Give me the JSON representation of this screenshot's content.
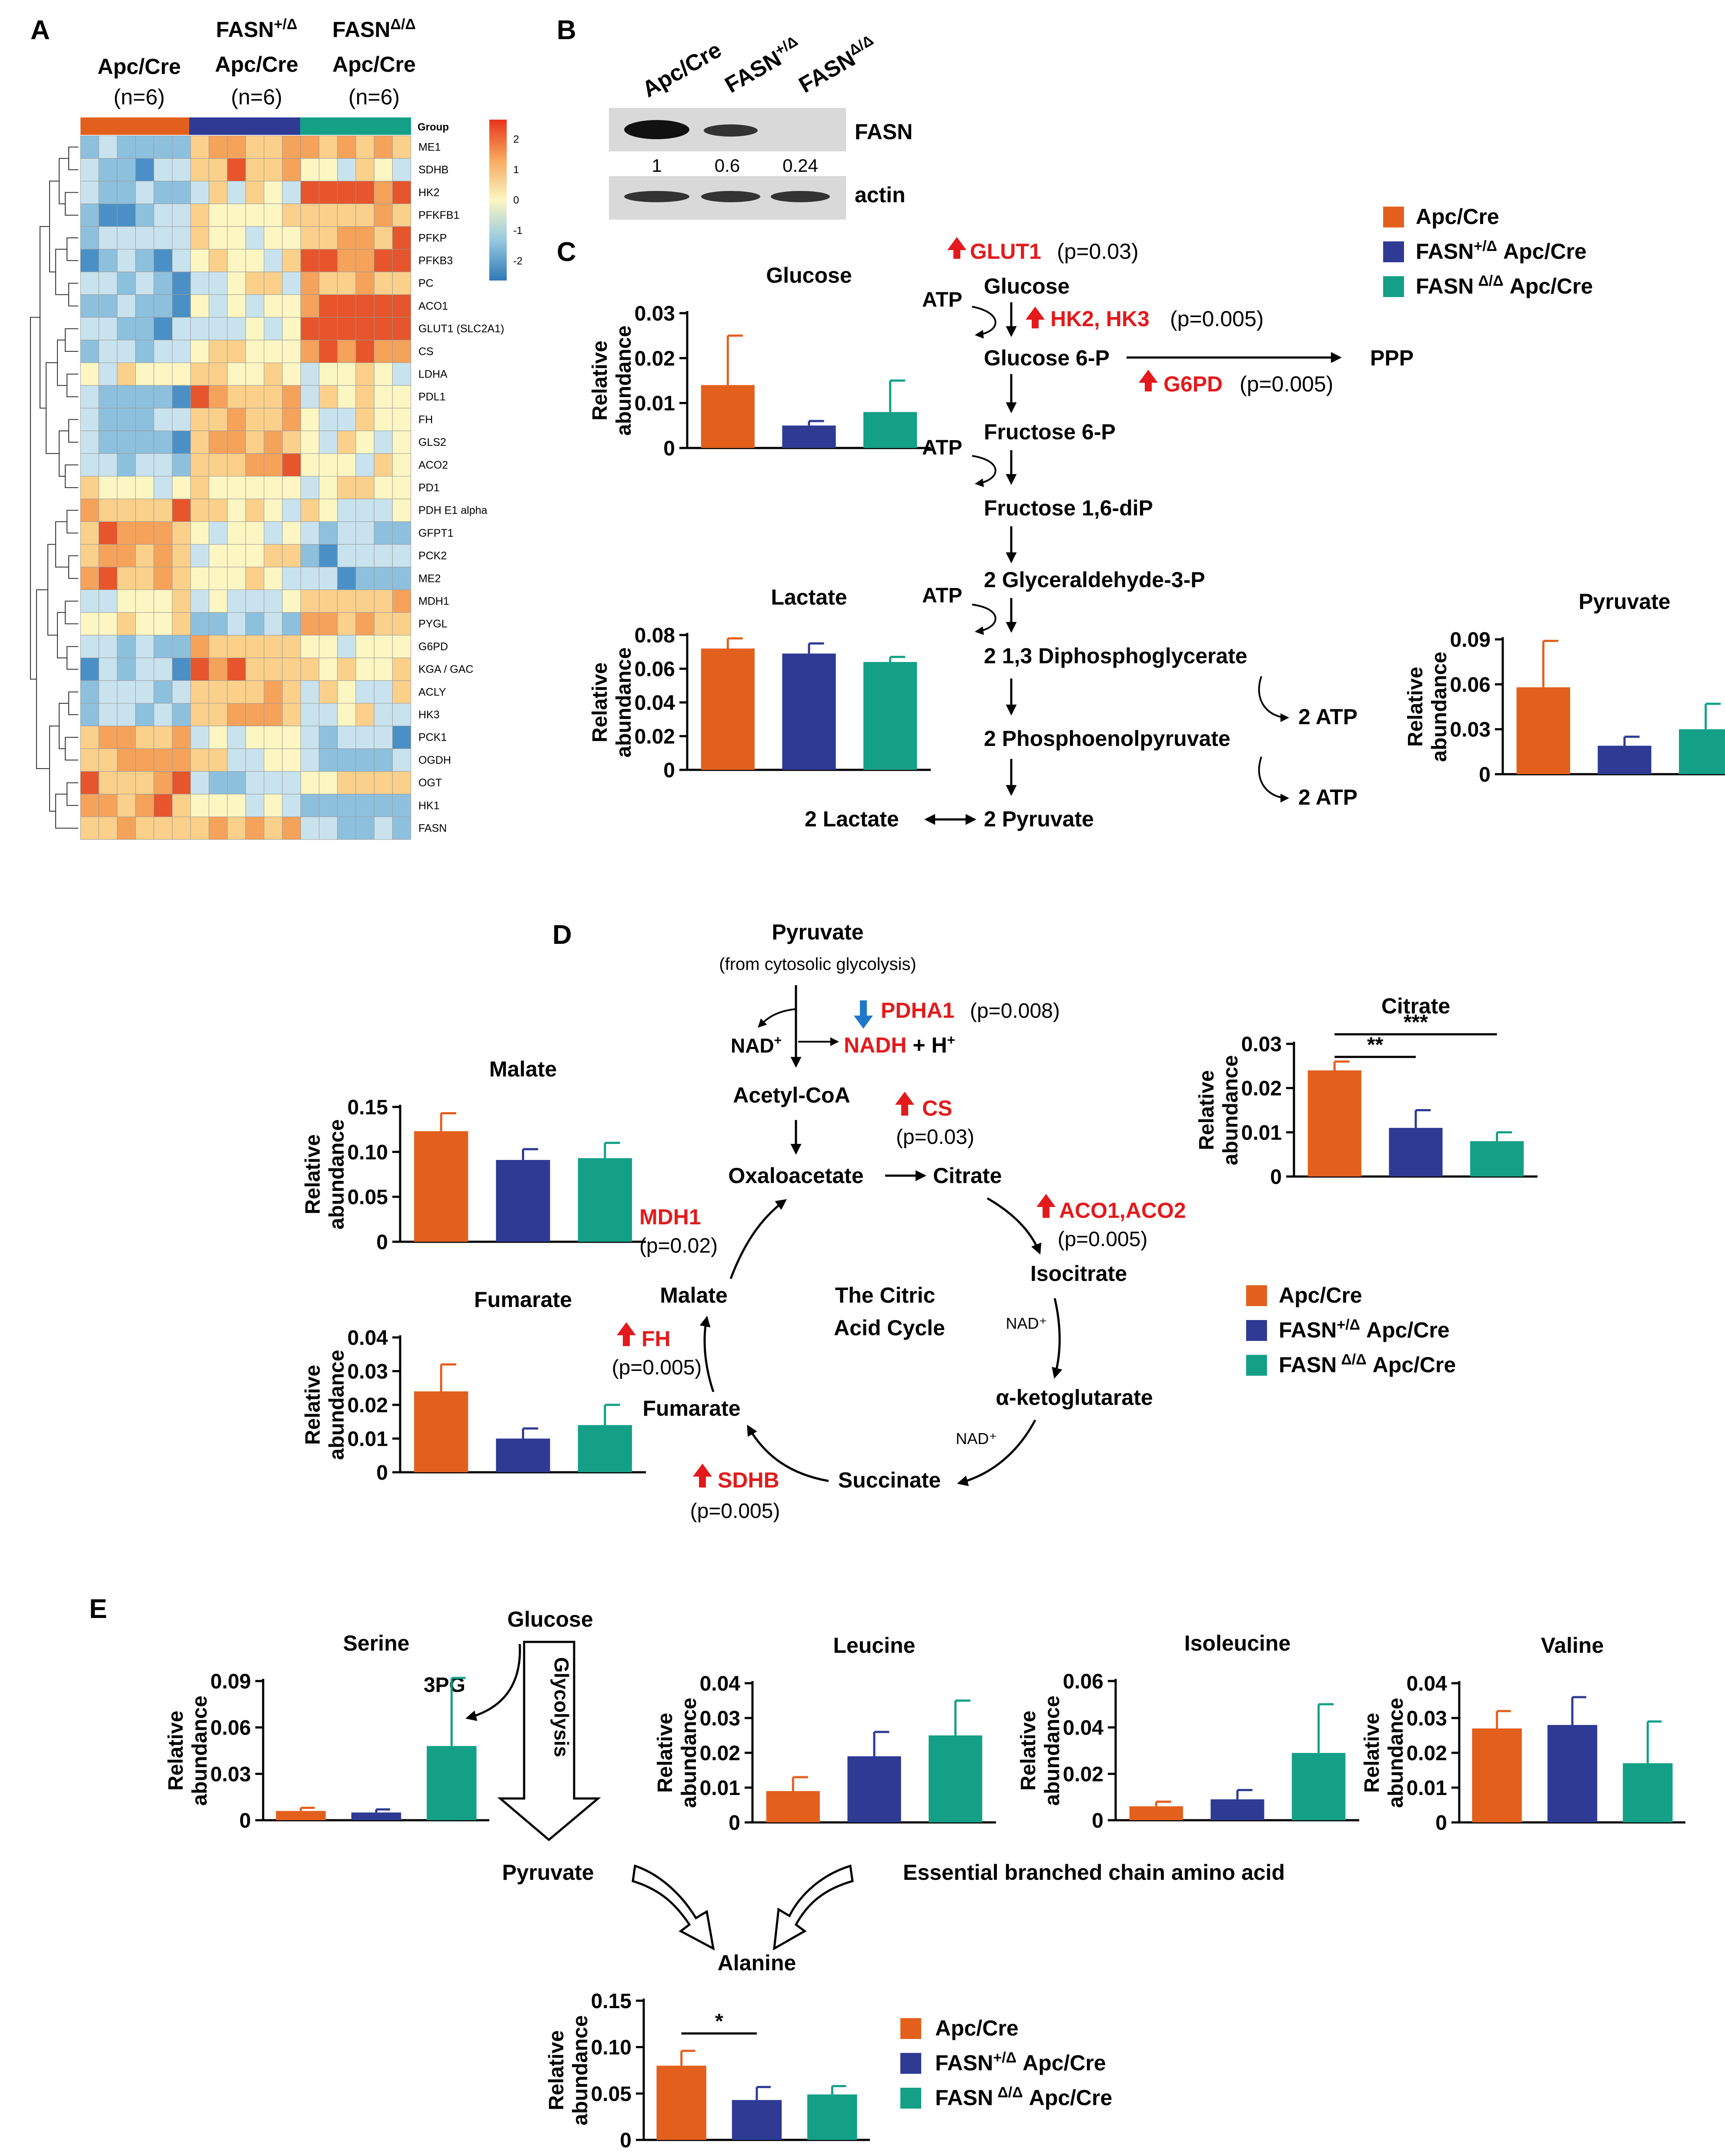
{
  "colors": {
    "apc": "#E3601C",
    "het": "#2E3A94",
    "hom": "#13A087",
    "red": "#E31A1C",
    "blue": "#1F78C8",
    "black": "#000000"
  },
  "panel_labels": [
    "A",
    "B",
    "C",
    "D",
    "E"
  ],
  "legend": {
    "apc": "Apc/Cre",
    "het": "FASN",
    "het_sup": "+/Δ",
    "hom": "FASN",
    "hom_sup": "Δ/Δ",
    "cre_suffix": " Apc/Cre"
  },
  "heatmap": {
    "col_headers": [
      {
        "top": "",
        "mid": "Apc/Cre",
        "n": "(n=6)"
      },
      {
        "top": "FASN",
        "sup": "+/Δ",
        "mid": "Apc/Cre",
        "n": "(n=6)"
      },
      {
        "top": "FASN",
        "sup": "Δ/Δ",
        "mid": "Apc/Cre",
        "n": "(n=6)"
      }
    ],
    "group_label": "Group",
    "scale_ticks": [
      "2",
      "1",
      "0",
      "-1",
      "-2"
    ],
    "genes": [
      "ME1",
      "SDHB",
      "HK2",
      "PFKFB1",
      "PFKP",
      "PFKB3",
      "PC",
      "ACO1",
      "GLUT1 (SLC2A1)",
      "CS",
      "LDHA",
      "PDL1",
      "FH",
      "GLS2",
      "ACO2",
      "PD1",
      "PDH E1 alpha",
      "GFPT1",
      "PCK2",
      "ME2",
      "MDH1",
      "PYGL",
      "G6PD",
      "KGA / GAC",
      "ACLY",
      "HK3",
      "PCK1",
      "OGDH",
      "OGT",
      "HK1",
      "FASN"
    ]
  },
  "western": {
    "lanes": [
      "Apc/Cre",
      "FASN",
      "FASN"
    ],
    "lane_sups": [
      "",
      "+/Δ",
      "Δ/Δ"
    ],
    "band1": "FASN",
    "band2": "actin",
    "quant": [
      "1",
      "0.6",
      "0.24"
    ]
  },
  "pathway_c": {
    "enz_glut1": "GLUT1",
    "p_glut1": "(p=0.03)",
    "enz_hk": "HK2, HK3",
    "p_hk": "(p=0.005)",
    "enz_g6pd": "G6PD",
    "p_g6pd": "(p=0.005)",
    "atp": "ATP",
    "ppp": "PPP",
    "two_atp": "2 ATP",
    "m_glucose": "Glucose",
    "m_g6p": "Glucose 6-P",
    "m_f6p": "Fructose 6-P",
    "m_f16": "Fructose 1,6-diP",
    "m_g3p": "2 Glyceraldehyde-3-P",
    "m_dpg": "2 1,3 Diphosphoglycerate",
    "m_pep": "2 Phosphoenolpyruvate",
    "m_lac": "2 Lactate",
    "m_pyr": "2 Pyruvate"
  },
  "pathway_d": {
    "pyruvate": "Pyruvate",
    "from": "(from cytosolic glycolysis)",
    "nad": "NAD",
    "nad_sup": "+",
    "nadh": "NADH",
    "hplus": " + H",
    "hplus_sup": "+",
    "enz_pdha1": "PDHA1",
    "p_pdha1": "(p=0.008)",
    "acetyl": "Acetyl-CoA",
    "enz_cs": "CS",
    "p_cs": "(p=0.03)",
    "oxalo": "Oxaloacetate",
    "citrate": "Citrate",
    "enz_aco": "ACO1,ACO2",
    "p_aco": "(p=0.005)",
    "isocitrate": "Isocitrate",
    "nad_small": "NAD⁺",
    "akg": "α-ketoglutarate",
    "succinate": "Succinate",
    "enz_sdhb": "SDHB",
    "p_sdhb": "(p=0.005)",
    "fumarate": "Fumarate",
    "enz_fh": "FH",
    "p_fh": "(p=0.005)",
    "malate": "Malate",
    "enz_mdh1": "MDH1",
    "p_mdh1": "(p=0.02)",
    "tca1": "The Citric",
    "tca2": "Acid Cycle"
  },
  "pathway_e": {
    "glucose": "Glucose",
    "pg3": "3PG",
    "glycolysis": "Glycolysis",
    "pyruvate": "Pyruvate",
    "bcaa": "Essential branched chain amino acid"
  },
  "chart_data": [
    {
      "id": "glucose",
      "type": "bar",
      "title": "Glucose",
      "ylabel": "Relative abundance",
      "categories": [
        "Apc/Cre",
        "FASN+/Δ Apc/Cre",
        "FASN Δ/Δ Apc/Cre"
      ],
      "values": [
        0.014,
        0.005,
        0.008
      ],
      "errors": [
        0.011,
        0.001,
        0.007
      ],
      "ylim": [
        0,
        0.03
      ],
      "yticks": [
        0,
        0.01,
        0.02,
        0.03
      ],
      "ytick_labels": [
        "0",
        "0.01",
        "0.02",
        "0.03"
      ],
      "sig": []
    },
    {
      "id": "lactate",
      "type": "bar",
      "title": "Lactate",
      "ylabel": "Relative abundance",
      "categories": [
        "Apc/Cre",
        "FASN+/Δ Apc/Cre",
        "FASN Δ/Δ Apc/Cre"
      ],
      "values": [
        0.072,
        0.069,
        0.064
      ],
      "errors": [
        0.006,
        0.006,
        0.003
      ],
      "ylim": [
        0,
        0.08
      ],
      "yticks": [
        0,
        0.02,
        0.04,
        0.06,
        0.08
      ],
      "ytick_labels": [
        "0",
        "0.02",
        "0.04",
        "0.06",
        "0.08"
      ],
      "sig": []
    },
    {
      "id": "pyruvate",
      "type": "bar",
      "title": "Pyruvate",
      "ylabel": "Relative abundance",
      "categories": [
        "Apc/Cre",
        "FASN+/Δ Apc/Cre",
        "FASN Δ/Δ Apc/Cre"
      ],
      "values": [
        0.058,
        0.019,
        0.03
      ],
      "errors": [
        0.031,
        0.006,
        0.017
      ],
      "ylim": [
        0,
        0.09
      ],
      "yticks": [
        0,
        0.03,
        0.06,
        0.09
      ],
      "ytick_labels": [
        "0",
        "0.03",
        "0.06",
        "0.09"
      ],
      "sig": []
    },
    {
      "id": "citrate",
      "type": "bar",
      "title": "Citrate",
      "ylabel": "Relative abundance",
      "categories": [
        "Apc/Cre",
        "FASN+/Δ Apc/Cre",
        "FASN Δ/Δ Apc/Cre"
      ],
      "values": [
        0.024,
        0.011,
        0.008
      ],
      "errors": [
        0.002,
        0.004,
        0.002
      ],
      "ylim": [
        0,
        0.03
      ],
      "yticks": [
        0,
        0.01,
        0.02,
        0.03
      ],
      "ytick_labels": [
        "0",
        "0.01",
        "0.02",
        "0.03"
      ],
      "sig": [
        {
          "from": 0,
          "to": 2,
          "label": "***"
        },
        {
          "from": 0,
          "to": 1,
          "label": "**"
        }
      ]
    },
    {
      "id": "malate",
      "type": "bar",
      "title": "Malate",
      "ylabel": "Relative abundance",
      "categories": [
        "Apc/Cre",
        "FASN+/Δ Apc/Cre",
        "FASN Δ/Δ Apc/Cre"
      ],
      "values": [
        0.123,
        0.091,
        0.093
      ],
      "errors": [
        0.02,
        0.012,
        0.017
      ],
      "ylim": [
        0,
        0.15
      ],
      "yticks": [
        0,
        0.05,
        0.1,
        0.15
      ],
      "ytick_labels": [
        "0",
        "0.05",
        "0.10",
        "0.15"
      ],
      "sig": []
    },
    {
      "id": "fumarate",
      "type": "bar",
      "title": "Fumarate",
      "ylabel": "Relative abundance",
      "categories": [
        "Apc/Cre",
        "FASN+/Δ Apc/Cre",
        "FASN Δ/Δ Apc/Cre"
      ],
      "values": [
        0.024,
        0.01,
        0.014
      ],
      "errors": [
        0.008,
        0.003,
        0.006
      ],
      "ylim": [
        0,
        0.04
      ],
      "yticks": [
        0,
        0.01,
        0.02,
        0.03,
        0.04
      ],
      "ytick_labels": [
        "0",
        "0.01",
        "0.02",
        "0.03",
        "0.04"
      ],
      "sig": []
    },
    {
      "id": "serine",
      "type": "bar",
      "title": "Serine",
      "ylabel": "Relative abundance",
      "categories": [
        "Apc/Cre",
        "FASN+/Δ Apc/Cre",
        "FASN Δ/Δ Apc/Cre"
      ],
      "values": [
        0.006,
        0.005,
        0.048
      ],
      "errors": [
        0.002,
        0.002,
        0.044
      ],
      "ylim": [
        0,
        0.09
      ],
      "yticks": [
        0,
        0.03,
        0.06,
        0.09
      ],
      "ytick_labels": [
        "0",
        "0.03",
        "0.06",
        "0.09"
      ],
      "sig": []
    },
    {
      "id": "leucine",
      "type": "bar",
      "title": "Leucine",
      "ylabel": "Relative abundance",
      "categories": [
        "Apc/Cre",
        "FASN+/Δ Apc/Cre",
        "FASN Δ/Δ Apc/Cre"
      ],
      "values": [
        0.009,
        0.019,
        0.025
      ],
      "errors": [
        0.004,
        0.007,
        0.01
      ],
      "ylim": [
        0,
        0.04
      ],
      "yticks": [
        0,
        0.01,
        0.02,
        0.03,
        0.04
      ],
      "ytick_labels": [
        "0",
        "0.01",
        "0.02",
        "0.03",
        "0.04"
      ],
      "sig": []
    },
    {
      "id": "isoleucine",
      "type": "bar",
      "title": "Isoleucine",
      "ylabel": "Relative abundance",
      "categories": [
        "Apc/Cre",
        "FASN+/Δ Apc/Cre",
        "FASN Δ/Δ Apc/Cre"
      ],
      "values": [
        0.006,
        0.009,
        0.029
      ],
      "errors": [
        0.002,
        0.004,
        0.021
      ],
      "ylim": [
        0,
        0.06
      ],
      "yticks": [
        0,
        0.02,
        0.04,
        0.06
      ],
      "ytick_labels": [
        "0",
        "0.02",
        "0.04",
        "0.06"
      ],
      "sig": []
    },
    {
      "id": "valine",
      "type": "bar",
      "title": "Valine",
      "ylabel": "Relative abundance",
      "categories": [
        "Apc/Cre",
        "FASN+/Δ Apc/Cre",
        "FASN Δ/Δ Apc/Cre"
      ],
      "values": [
        0.027,
        0.028,
        0.017
      ],
      "errors": [
        0.005,
        0.008,
        0.012
      ],
      "ylim": [
        0,
        0.04
      ],
      "yticks": [
        0,
        0.01,
        0.02,
        0.03,
        0.04
      ],
      "ytick_labels": [
        "0",
        "0.01",
        "0.02",
        "0.03",
        "0.04"
      ],
      "sig": []
    },
    {
      "id": "alanine",
      "type": "bar",
      "title": "Alanine",
      "ylabel": "Relative abundance",
      "categories": [
        "Apc/Cre",
        "FASN+/Δ Apc/Cre",
        "FASN Δ/Δ Apc/Cre"
      ],
      "values": [
        0.08,
        0.043,
        0.049
      ],
      "errors": [
        0.016,
        0.014,
        0.009
      ],
      "ylim": [
        0,
        0.15
      ],
      "yticks": [
        0,
        0.05,
        0.1,
        0.15
      ],
      "ytick_labels": [
        "0",
        "0.05",
        "0.10",
        "0.15"
      ],
      "sig": [
        {
          "from": 0,
          "to": 1,
          "label": "*"
        }
      ]
    }
  ]
}
